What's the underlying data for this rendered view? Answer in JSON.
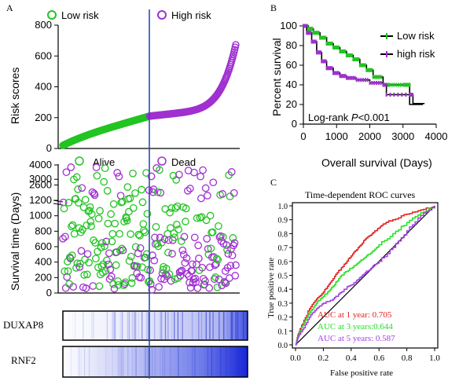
{
  "panels": {
    "A": "A",
    "B": "B",
    "C": "C"
  },
  "colors": {
    "low": "#22c422",
    "high": "#a030d0",
    "cutline": "#2a4fb0",
    "heat": "#1a2bd6",
    "roc1": "#e02020",
    "roc3": "#22e022",
    "roc5": "#a040e0"
  },
  "chart_data": [
    {
      "id": "risk_score_distribution",
      "type": "scatter",
      "ylabel": "Risk scores",
      "ylim": [
        0,
        800
      ],
      "yticks": [
        "0",
        "200",
        "400",
        "600",
        "800"
      ],
      "legend": [
        {
          "name": "Low risk",
          "color": "#22c422"
        },
        {
          "name": "High risk",
          "color": "#a030d0"
        }
      ],
      "n_patients": 300,
      "cutoff_index": 150,
      "low_range": [
        20,
        210
      ],
      "high_range": [
        210,
        690
      ]
    },
    {
      "id": "survival_status",
      "type": "scatter",
      "ylabel": "Survival time (Days)",
      "yticks": [
        "0",
        "200",
        "400",
        "600",
        "800",
        "1000",
        "1200",
        "2600",
        "3000",
        "4000"
      ],
      "legend": [
        {
          "name": "Alive",
          "color": "#22c422"
        },
        {
          "name": "Dead",
          "color": "#a030d0"
        }
      ]
    },
    {
      "id": "expression_heatmap",
      "type": "heatmap",
      "rows": [
        "DUXAP8",
        "RNF2"
      ]
    },
    {
      "id": "kaplan_meier",
      "type": "line",
      "xlabel": "Overall survival (Days)",
      "ylabel": "Percent survival",
      "xlim": [
        0,
        4000
      ],
      "ylim": [
        0,
        100
      ],
      "xticks": [
        "0",
        "1000",
        "2000",
        "3000",
        "4000"
      ],
      "yticks": [
        "0",
        "20",
        "40",
        "60",
        "80",
        "100"
      ],
      "annotation_prefix": "Log-rank ",
      "annotation_p": "P",
      "annotation_suffix": "<0.001",
      "series": [
        {
          "name": "Low risk",
          "color": "#000000",
          "censor_color": "#22c422",
          "points": [
            [
              0,
              100
            ],
            [
              150,
              97
            ],
            [
              300,
              93
            ],
            [
              500,
              88
            ],
            [
              700,
              82
            ],
            [
              900,
              78
            ],
            [
              1100,
              74
            ],
            [
              1300,
              70
            ],
            [
              1500,
              66
            ],
            [
              1700,
              60
            ],
            [
              1900,
              55
            ],
            [
              2100,
              48
            ],
            [
              2400,
              40
            ],
            [
              2600,
              40
            ],
            [
              3000,
              40
            ],
            [
              3200,
              40
            ],
            [
              3200,
              20
            ],
            [
              3600,
              20
            ]
          ]
        },
        {
          "name": "high risk",
          "color": "#000000",
          "censor_color": "#a030d0",
          "points": [
            [
              0,
              100
            ],
            [
              100,
              93
            ],
            [
              250,
              84
            ],
            [
              400,
              73
            ],
            [
              550,
              64
            ],
            [
              700,
              57
            ],
            [
              900,
              52
            ],
            [
              1100,
              49
            ],
            [
              1300,
              47
            ],
            [
              1600,
              45
            ],
            [
              2000,
              42
            ],
            [
              2400,
              40
            ],
            [
              2500,
              30
            ],
            [
              3200,
              30
            ],
            [
              3300,
              21
            ],
            [
              3650,
              21
            ]
          ]
        }
      ]
    },
    {
      "id": "time_dependent_roc",
      "type": "line",
      "title": "Time-dependent ROC curves",
      "xlabel": "False positive rate",
      "ylabel": "True positive rate",
      "xlim": [
        0,
        1
      ],
      "ylim": [
        0,
        1
      ],
      "xticks": [
        "0.0",
        "0.2",
        "0.4",
        "0.6",
        "0.8",
        "1.0"
      ],
      "yticks": [
        "0.0",
        "0.1",
        "0.2",
        "0.3",
        "0.4",
        "0.5",
        "0.6",
        "0.7",
        "0.8",
        "0.9",
        "1.0"
      ],
      "series": [
        {
          "name": "AUC at 1 year: 0.705",
          "color": "#e02020",
          "points": [
            [
              0,
              0
            ],
            [
              0.02,
              0.08
            ],
            [
              0.05,
              0.15
            ],
            [
              0.1,
              0.26
            ],
            [
              0.15,
              0.33
            ],
            [
              0.2,
              0.38
            ],
            [
              0.25,
              0.45
            ],
            [
              0.3,
              0.52
            ],
            [
              0.35,
              0.58
            ],
            [
              0.4,
              0.64
            ],
            [
              0.45,
              0.7
            ],
            [
              0.5,
              0.76
            ],
            [
              0.55,
              0.8
            ],
            [
              0.6,
              0.84
            ],
            [
              0.65,
              0.88
            ],
            [
              0.7,
              0.9
            ],
            [
              0.8,
              0.94
            ],
            [
              0.9,
              0.97
            ],
            [
              1,
              1
            ]
          ]
        },
        {
          "name": "AUC at 3 years:0.644",
          "color": "#22e022",
          "points": [
            [
              0,
              0
            ],
            [
              0.02,
              0.07
            ],
            [
              0.05,
              0.14
            ],
            [
              0.1,
              0.23
            ],
            [
              0.15,
              0.3
            ],
            [
              0.2,
              0.35
            ],
            [
              0.25,
              0.4
            ],
            [
              0.3,
              0.46
            ],
            [
              0.35,
              0.52
            ],
            [
              0.4,
              0.55
            ],
            [
              0.45,
              0.59
            ],
            [
              0.5,
              0.63
            ],
            [
              0.55,
              0.67
            ],
            [
              0.6,
              0.72
            ],
            [
              0.7,
              0.8
            ],
            [
              0.8,
              0.88
            ],
            [
              0.9,
              0.95
            ],
            [
              1,
              1
            ]
          ]
        },
        {
          "name": "AUC at 5 years: 0.587",
          "color": "#a040e0",
          "points": [
            [
              0,
              0
            ],
            [
              0.02,
              0.06
            ],
            [
              0.05,
              0.11
            ],
            [
              0.1,
              0.2
            ],
            [
              0.15,
              0.26
            ],
            [
              0.2,
              0.3
            ],
            [
              0.25,
              0.32
            ],
            [
              0.3,
              0.35
            ],
            [
              0.35,
              0.4
            ],
            [
              0.4,
              0.43
            ],
            [
              0.45,
              0.47
            ],
            [
              0.5,
              0.52
            ],
            [
              0.55,
              0.56
            ],
            [
              0.6,
              0.6
            ],
            [
              0.7,
              0.7
            ],
            [
              0.8,
              0.82
            ],
            [
              0.9,
              0.93
            ],
            [
              1,
              1
            ]
          ]
        }
      ]
    }
  ]
}
